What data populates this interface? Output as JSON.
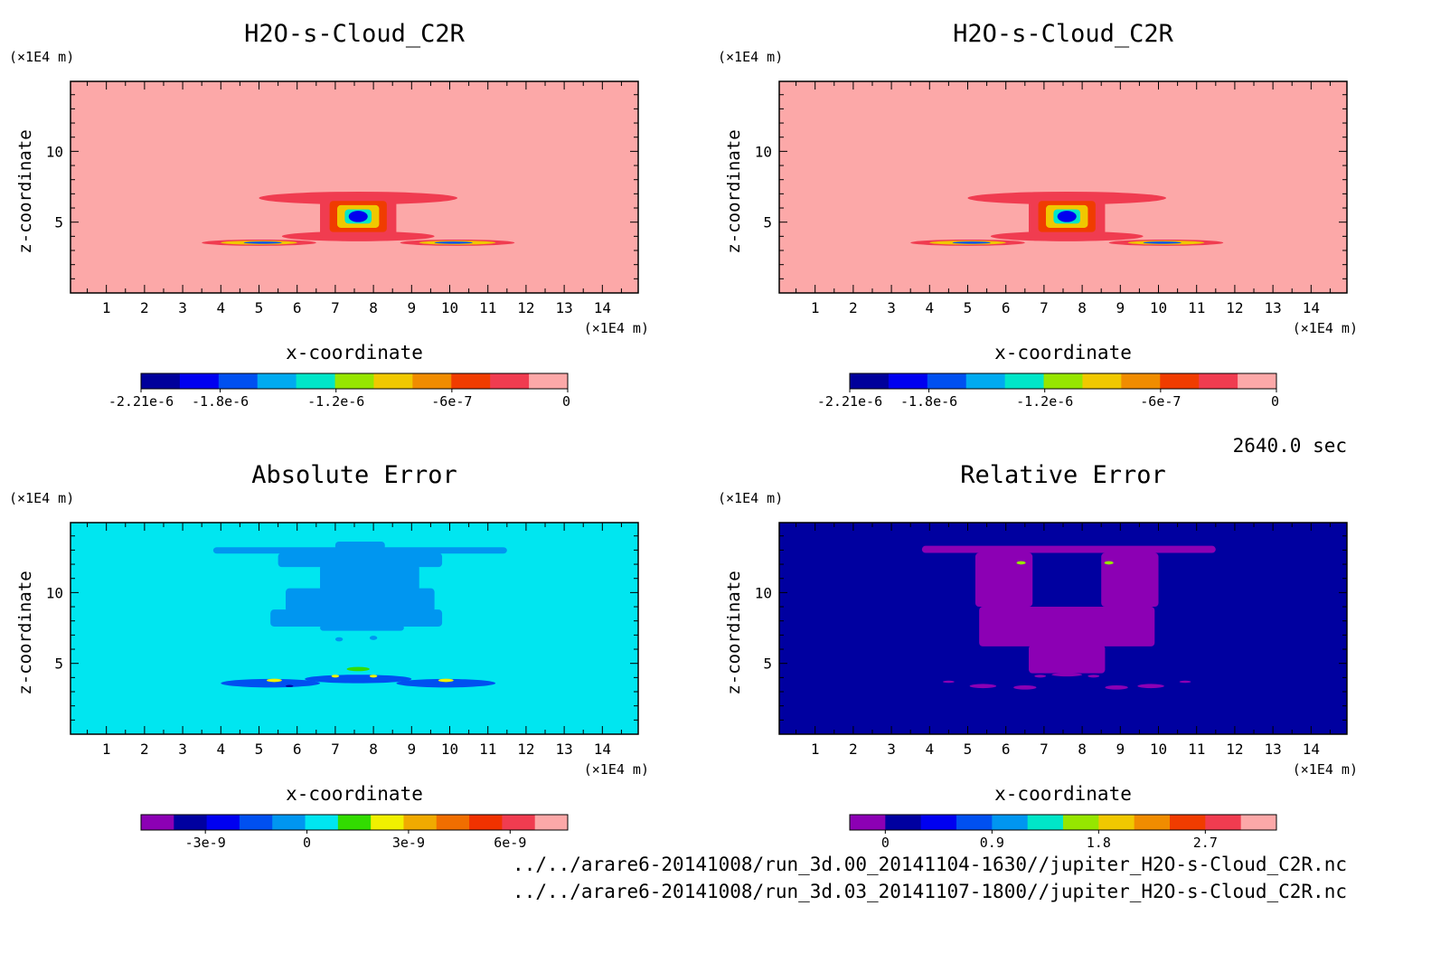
{
  "time_label": "2640.0 sec",
  "file_paths": [
    "../../arare6-20141008/run_3d.00_20141104-1630//jupiter_H2O-s-Cloud_C2R.nc",
    "../../arare6-20141008/run_3d.03_20141107-1800//jupiter_H2O-s-Cloud_C2R.nc"
  ],
  "chart_data": [
    {
      "type": "heatmap",
      "title": "H2O-s-Cloud_C2R",
      "xlabel": "x-coordinate",
      "ylabel": "z-coordinate",
      "x_unit": "(×1E4 m)",
      "y_unit": "(×1E4 m)",
      "xlim": [
        0.06,
        14.94
      ],
      "ylim": [
        0,
        14.94
      ],
      "x_ticks": [
        1,
        2,
        3,
        4,
        5,
        6,
        7,
        8,
        9,
        10,
        11,
        12,
        13,
        14
      ],
      "y_ticks": [
        5,
        10
      ],
      "background_color": "#fca8a8",
      "colorbar": {
        "colors": [
          "#00009b",
          "#0000f0",
          "#0050f0",
          "#00aaf0",
          "#00e6c8",
          "#96e600",
          "#f0c800",
          "#f08c00",
          "#f03c00",
          "#f03c50",
          "#fca8a8"
        ],
        "ticks": [
          {
            "value": -2.21e-06,
            "label": "-2.21e-6"
          },
          {
            "value": -1.8e-06,
            "label": "-1.8e-6"
          },
          {
            "value": -1.2e-06,
            "label": "-1.2e-6"
          },
          {
            "value": -6e-07,
            "label": "-6e-7"
          },
          {
            "value": 0,
            "label": "0"
          }
        ],
        "range": [
          -2.21e-06,
          0
        ]
      },
      "features": [
        {
          "kind": "ellipse",
          "x": 7.6,
          "z": 6.7,
          "rx": 2.6,
          "rz": 0.45,
          "level": 9
        },
        {
          "kind": "ellipse",
          "x": 7.6,
          "z": 4.0,
          "rx": 2.0,
          "rz": 0.35,
          "level": 9
        },
        {
          "kind": "rect",
          "x0": 6.6,
          "x1": 8.6,
          "z0": 3.9,
          "z1": 6.9,
          "level": 9
        },
        {
          "kind": "rect",
          "x0": 6.85,
          "x1": 8.35,
          "z0": 4.3,
          "z1": 6.5,
          "level": 8
        },
        {
          "kind": "rect",
          "x0": 7.05,
          "x1": 8.15,
          "z0": 4.6,
          "z1": 6.2,
          "level": 6
        },
        {
          "kind": "rect",
          "x0": 7.25,
          "x1": 7.95,
          "z0": 4.9,
          "z1": 5.9,
          "level": 4
        },
        {
          "kind": "ellipse",
          "x": 7.6,
          "z": 5.4,
          "rx": 0.25,
          "rz": 0.4,
          "level": 1
        },
        {
          "kind": "ellipse",
          "x": 5.0,
          "z": 3.55,
          "rx": 1.5,
          "rz": 0.22,
          "level": 9
        },
        {
          "kind": "ellipse",
          "x": 5.0,
          "z": 3.55,
          "rx": 1.0,
          "rz": 0.14,
          "level": 6
        },
        {
          "kind": "ellipse",
          "x": 5.1,
          "z": 3.55,
          "rx": 0.5,
          "rz": 0.08,
          "level": 2
        },
        {
          "kind": "ellipse",
          "x": 10.2,
          "z": 3.55,
          "rx": 1.5,
          "rz": 0.22,
          "level": 9
        },
        {
          "kind": "ellipse",
          "x": 10.2,
          "z": 3.55,
          "rx": 1.0,
          "rz": 0.14,
          "level": 6
        },
        {
          "kind": "ellipse",
          "x": 10.1,
          "z": 3.55,
          "rx": 0.5,
          "rz": 0.08,
          "level": 2
        }
      ]
    },
    {
      "type": "heatmap",
      "title": "H2O-s-Cloud_C2R",
      "xlabel": "x-coordinate",
      "ylabel": "z-coordinate",
      "x_unit": "(×1E4 m)",
      "y_unit": "(×1E4 m)",
      "xlim": [
        0.06,
        14.94
      ],
      "ylim": [
        0,
        14.94
      ],
      "x_ticks": [
        1,
        2,
        3,
        4,
        5,
        6,
        7,
        8,
        9,
        10,
        11,
        12,
        13,
        14
      ],
      "y_ticks": [
        5,
        10
      ],
      "background_color": "#fca8a8",
      "colorbar": {
        "colors": [
          "#00009b",
          "#0000f0",
          "#0050f0",
          "#00aaf0",
          "#00e6c8",
          "#96e600",
          "#f0c800",
          "#f08c00",
          "#f03c00",
          "#f03c50",
          "#fca8a8"
        ],
        "ticks": [
          {
            "value": -2.21e-06,
            "label": "-2.21e-6"
          },
          {
            "value": -1.8e-06,
            "label": "-1.8e-6"
          },
          {
            "value": -1.2e-06,
            "label": "-1.2e-6"
          },
          {
            "value": -6e-07,
            "label": "-6e-7"
          },
          {
            "value": 0,
            "label": "0"
          }
        ],
        "range": [
          -2.21e-06,
          0
        ]
      },
      "features": [
        {
          "kind": "ellipse",
          "x": 7.6,
          "z": 6.7,
          "rx": 2.6,
          "rz": 0.45,
          "level": 9
        },
        {
          "kind": "ellipse",
          "x": 7.6,
          "z": 4.0,
          "rx": 2.0,
          "rz": 0.35,
          "level": 9
        },
        {
          "kind": "rect",
          "x0": 6.6,
          "x1": 8.6,
          "z0": 3.9,
          "z1": 6.9,
          "level": 9
        },
        {
          "kind": "rect",
          "x0": 6.85,
          "x1": 8.35,
          "z0": 4.3,
          "z1": 6.5,
          "level": 8
        },
        {
          "kind": "rect",
          "x0": 7.05,
          "x1": 8.15,
          "z0": 4.6,
          "z1": 6.2,
          "level": 6
        },
        {
          "kind": "rect",
          "x0": 7.25,
          "x1": 7.95,
          "z0": 4.9,
          "z1": 5.9,
          "level": 4
        },
        {
          "kind": "ellipse",
          "x": 7.6,
          "z": 5.4,
          "rx": 0.25,
          "rz": 0.4,
          "level": 1
        },
        {
          "kind": "ellipse",
          "x": 5.0,
          "z": 3.55,
          "rx": 1.5,
          "rz": 0.22,
          "level": 9
        },
        {
          "kind": "ellipse",
          "x": 5.0,
          "z": 3.55,
          "rx": 1.0,
          "rz": 0.14,
          "level": 6
        },
        {
          "kind": "ellipse",
          "x": 5.1,
          "z": 3.55,
          "rx": 0.5,
          "rz": 0.08,
          "level": 2
        },
        {
          "kind": "ellipse",
          "x": 10.2,
          "z": 3.55,
          "rx": 1.5,
          "rz": 0.22,
          "level": 9
        },
        {
          "kind": "ellipse",
          "x": 10.2,
          "z": 3.55,
          "rx": 1.0,
          "rz": 0.14,
          "level": 6
        },
        {
          "kind": "ellipse",
          "x": 10.1,
          "z": 3.55,
          "rx": 0.5,
          "rz": 0.08,
          "level": 2
        }
      ]
    },
    {
      "type": "heatmap",
      "title": "Absolute Error",
      "xlabel": "x-coordinate",
      "ylabel": "z-coordinate",
      "x_unit": "(×1E4 m)",
      "y_unit": "(×1E4 m)",
      "xlim": [
        0.06,
        14.94
      ],
      "ylim": [
        0,
        14.94
      ],
      "x_ticks": [
        1,
        2,
        3,
        4,
        5,
        6,
        7,
        8,
        9,
        10,
        11,
        12,
        13,
        14
      ],
      "y_ticks": [
        5,
        10
      ],
      "background_color": "#00e6f0",
      "colorbar": {
        "colors": [
          "#8c00b4",
          "#0000a0",
          "#0000f0",
          "#0050f0",
          "#0096f0",
          "#00e6f0",
          "#32dc00",
          "#f0f000",
          "#f0aa00",
          "#f06e00",
          "#f03200",
          "#f03c50",
          "#fca8a8"
        ],
        "ticks": [
          {
            "value": -3e-09,
            "label": "-3e-9"
          },
          {
            "value": 0,
            "label": "0"
          },
          {
            "value": 3e-09,
            "label": "3e-9"
          },
          {
            "value": 6e-09,
            "label": "6e-9"
          }
        ],
        "range": [
          -4.9e-09,
          7.7e-09
        ]
      },
      "features": [
        {
          "kind": "rect",
          "x0": 3.8,
          "x1": 11.5,
          "z0": 12.75,
          "z1": 13.2,
          "level": 4
        },
        {
          "kind": "rect",
          "x0": 7.0,
          "x1": 8.3,
          "z0": 13.0,
          "z1": 13.6,
          "level": 4
        },
        {
          "kind": "rect",
          "x0": 5.5,
          "x1": 9.8,
          "z0": 11.8,
          "z1": 12.8,
          "level": 4
        },
        {
          "kind": "rect",
          "x0": 6.6,
          "x1": 9.2,
          "z0": 9.0,
          "z1": 12.0,
          "level": 4
        },
        {
          "kind": "rect",
          "x0": 5.7,
          "x1": 9.6,
          "z0": 8.6,
          "z1": 10.3,
          "level": 4
        },
        {
          "kind": "rect",
          "x0": 5.3,
          "x1": 9.8,
          "z0": 7.6,
          "z1": 8.8,
          "level": 4
        },
        {
          "kind": "rect",
          "x0": 6.6,
          "x1": 8.8,
          "z0": 7.3,
          "z1": 7.7,
          "level": 4
        },
        {
          "kind": "ellipse",
          "x": 7.1,
          "z": 6.7,
          "rx": 0.1,
          "rz": 0.15,
          "level": 4
        },
        {
          "kind": "ellipse",
          "x": 8.0,
          "z": 6.8,
          "rx": 0.1,
          "rz": 0.15,
          "level": 4
        },
        {
          "kind": "ellipse",
          "x": 5.3,
          "z": 3.6,
          "rx": 1.3,
          "rz": 0.3,
          "level": 3
        },
        {
          "kind": "ellipse",
          "x": 9.9,
          "z": 3.6,
          "rx": 1.3,
          "rz": 0.3,
          "level": 3
        },
        {
          "kind": "ellipse",
          "x": 7.6,
          "z": 3.9,
          "rx": 1.4,
          "rz": 0.3,
          "level": 3
        },
        {
          "kind": "ellipse",
          "x": 5.4,
          "z": 3.8,
          "rx": 0.2,
          "rz": 0.12,
          "level": 7
        },
        {
          "kind": "ellipse",
          "x": 9.9,
          "z": 3.8,
          "rx": 0.2,
          "rz": 0.12,
          "level": 7
        },
        {
          "kind": "ellipse",
          "x": 7.6,
          "z": 4.6,
          "rx": 0.3,
          "rz": 0.15,
          "level": 6
        },
        {
          "kind": "ellipse",
          "x": 7.0,
          "z": 4.1,
          "rx": 0.1,
          "rz": 0.1,
          "level": 7
        },
        {
          "kind": "ellipse",
          "x": 8.0,
          "z": 4.1,
          "rx": 0.1,
          "rz": 0.1,
          "level": 7
        },
        {
          "kind": "ellipse",
          "x": 5.8,
          "z": 3.4,
          "rx": 0.1,
          "rz": 0.08,
          "level": 1
        }
      ]
    },
    {
      "type": "heatmap",
      "title": "Relative Error",
      "xlabel": "x-coordinate",
      "ylabel": "z-coordinate",
      "x_unit": "(×1E4 m)",
      "y_unit": "(×1E4 m)",
      "xlim": [
        0.06,
        14.94
      ],
      "ylim": [
        0,
        14.94
      ],
      "x_ticks": [
        1,
        2,
        3,
        4,
        5,
        6,
        7,
        8,
        9,
        10,
        11,
        12,
        13,
        14
      ],
      "y_ticks": [
        5,
        10
      ],
      "background_color": "#0000a0",
      "colorbar": {
        "colors": [
          "#8c00b4",
          "#0000a0",
          "#0000f0",
          "#0050f0",
          "#0096f0",
          "#00e6c8",
          "#96e600",
          "#f0c800",
          "#f08c00",
          "#f03c00",
          "#f03c50",
          "#fca8a8"
        ],
        "ticks": [
          {
            "value": 0,
            "label": "0"
          },
          {
            "value": 0.9,
            "label": "0.9"
          },
          {
            "value": 1.8,
            "label": "1.8"
          },
          {
            "value": 2.7,
            "label": "2.7"
          }
        ],
        "range": [
          -0.3,
          3.3
        ]
      },
      "features": [
        {
          "kind": "rect",
          "x0": 3.8,
          "x1": 11.5,
          "z0": 12.8,
          "z1": 13.3,
          "level": 0
        },
        {
          "kind": "rect",
          "x0": 5.2,
          "x1": 6.7,
          "z0": 9.0,
          "z1": 12.8,
          "level": 0
        },
        {
          "kind": "rect",
          "x0": 8.5,
          "x1": 10.0,
          "z0": 9.0,
          "z1": 12.8,
          "level": 0
        },
        {
          "kind": "rect",
          "x0": 5.3,
          "x1": 9.9,
          "z0": 6.2,
          "z1": 9.0,
          "level": 0
        },
        {
          "kind": "rect",
          "x0": 6.6,
          "x1": 8.6,
          "z0": 4.3,
          "z1": 6.3,
          "level": 0
        },
        {
          "kind": "ellipse",
          "x": 6.4,
          "z": 12.1,
          "rx": 0.12,
          "rz": 0.12,
          "level": 6
        },
        {
          "kind": "ellipse",
          "x": 8.7,
          "z": 12.1,
          "rx": 0.12,
          "rz": 0.12,
          "level": 6
        },
        {
          "kind": "ellipse",
          "x": 5.4,
          "z": 3.4,
          "rx": 0.35,
          "rz": 0.15,
          "level": 0
        },
        {
          "kind": "ellipse",
          "x": 6.5,
          "z": 3.3,
          "rx": 0.3,
          "rz": 0.15,
          "level": 0
        },
        {
          "kind": "ellipse",
          "x": 8.9,
          "z": 3.3,
          "rx": 0.3,
          "rz": 0.15,
          "level": 0
        },
        {
          "kind": "ellipse",
          "x": 9.8,
          "z": 3.4,
          "rx": 0.35,
          "rz": 0.15,
          "level": 0
        },
        {
          "kind": "ellipse",
          "x": 7.6,
          "z": 4.2,
          "rx": 0.4,
          "rz": 0.12,
          "level": 0
        },
        {
          "kind": "ellipse",
          "x": 4.5,
          "z": 3.7,
          "rx": 0.15,
          "rz": 0.08,
          "level": 0
        },
        {
          "kind": "ellipse",
          "x": 10.7,
          "z": 3.7,
          "rx": 0.15,
          "rz": 0.08,
          "level": 0
        },
        {
          "kind": "ellipse",
          "x": 6.9,
          "z": 4.1,
          "rx": 0.15,
          "rz": 0.1,
          "level": 0
        },
        {
          "kind": "ellipse",
          "x": 8.3,
          "z": 4.1,
          "rx": 0.15,
          "rz": 0.1,
          "level": 0
        }
      ]
    }
  ]
}
